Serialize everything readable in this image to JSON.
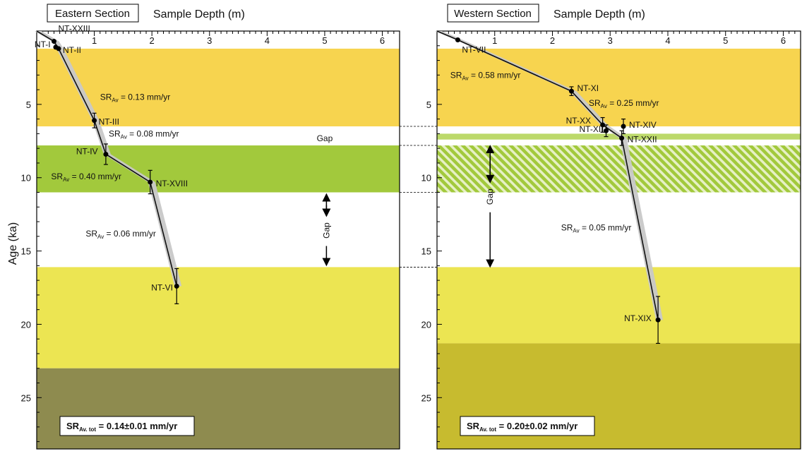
{
  "y_axis_label": "Age (ka)",
  "gap_link_style": "dashed",
  "chart_data": [
    {
      "type": "line",
      "section_title": "Eastern Section",
      "x_axis_label": "Sample Depth (m)",
      "x_axis_position": "top",
      "xlim": [
        0,
        6.3
      ],
      "ylim": [
        0,
        28.5
      ],
      "y_inverted": true,
      "x_ticks": [
        "1",
        "2",
        "3",
        "4",
        "5",
        "6"
      ],
      "y_ticks": [
        "5",
        "10",
        "15",
        "20",
        "25"
      ],
      "bands": [
        {
          "from": 1.2,
          "to": 6.5,
          "color": "#f7d44f"
        },
        {
          "from": 7.8,
          "to": 11.0,
          "color": "#a2c93c"
        },
        {
          "from": 16.1,
          "to": 23.0,
          "color": "#ece552"
        },
        {
          "from": 23.0,
          "to": 28.5,
          "color": "#8e8b4f"
        }
      ],
      "samples": [
        {
          "label": "NT-XXIII",
          "depth": 0.3,
          "age": 0.7
        },
        {
          "label": "NT-I",
          "depth": 0.33,
          "age": 1.1
        },
        {
          "label": "NT-II",
          "depth": 0.38,
          "age": 1.2
        },
        {
          "label": "NT-III",
          "depth": 1.0,
          "age": 6.1,
          "err": 0.5
        },
        {
          "label": "NT-IV",
          "depth": 1.2,
          "age": 8.4,
          "err": 0.7
        },
        {
          "label": "NT-XVIII",
          "depth": 1.97,
          "age": 10.3,
          "err": 0.8
        },
        {
          "label": "NT-VI",
          "depth": 2.43,
          "age": 17.4,
          "err": 1.2
        }
      ],
      "curve": [
        [
          0,
          0
        ],
        [
          0.3,
          0.7
        ],
        [
          0.38,
          1.2
        ],
        [
          1.0,
          6.1
        ],
        [
          1.2,
          8.4
        ],
        [
          1.97,
          10.3
        ],
        [
          2.43,
          17.4
        ]
      ],
      "rates": [
        {
          "sub": "Av",
          "text": " = 0.13 mm/yr",
          "at": [
            1.1,
            4.7
          ]
        },
        {
          "sub": "Av",
          "text": " = 0.08 mm/yr",
          "at": [
            1.25,
            7.2
          ]
        },
        {
          "sub": "Av",
          "text": " = 0.40 mm/yr",
          "at": [
            0.25,
            10.1
          ]
        },
        {
          "sub": "Av",
          "text": " = 0.06 mm/yr",
          "at": [
            0.85,
            14.0
          ]
        }
      ],
      "gap_labels": [
        {
          "text": "Gap",
          "at": [
            5.0,
            7.5
          ],
          "vertical": false
        },
        {
          "text": "Gap",
          "at": [
            5.03,
            13.6
          ],
          "vertical": true,
          "arrow": [
            11.2,
            15.9
          ]
        }
      ],
      "total_rate": {
        "main": "SR",
        "sub": "Av. tot",
        "value": " = 0.14±0.01 mm/yr"
      }
    },
    {
      "type": "line",
      "section_title": "Western Section",
      "x_axis_label": "Sample Depth (m)",
      "x_axis_position": "top",
      "xlim": [
        0,
        6.3
      ],
      "ylim": [
        0,
        28.5
      ],
      "y_inverted": true,
      "x_ticks": [
        "1",
        "2",
        "3",
        "4",
        "5",
        "6"
      ],
      "y_ticks": [
        "5",
        "10",
        "15",
        "20",
        "25"
      ],
      "bands": [
        {
          "from": 1.2,
          "to": 6.5,
          "color": "#f7d44f"
        },
        {
          "from": 7.0,
          "to": 7.4,
          "color": "#bcd96a"
        },
        {
          "from": 7.8,
          "to": 11.0,
          "color": "#a2c93c",
          "hatched": true
        },
        {
          "from": 16.1,
          "to": 21.3,
          "color": "#ece552"
        },
        {
          "from": 21.3,
          "to": 28.5,
          "color": "#c7bb2f"
        }
      ],
      "samples": [
        {
          "label": "NT-VII",
          "depth": 0.36,
          "age": 0.6
        },
        {
          "label": "NT-XI",
          "depth": 2.33,
          "age": 4.1,
          "err": 0.3
        },
        {
          "label": "NT-XX",
          "depth": 2.87,
          "age": 6.4,
          "err": 0.5
        },
        {
          "label": "NT-XII",
          "depth": 2.93,
          "age": 6.8,
          "err": 0.4
        },
        {
          "label": "NT-XIV",
          "depth": 3.23,
          "age": 6.5,
          "err": 0.5
        },
        {
          "label": "NT-XXII",
          "depth": 3.2,
          "age": 7.3,
          "err": 0.5
        },
        {
          "label": "NT-XIX",
          "depth": 3.83,
          "age": 19.7,
          "err": 1.6
        }
      ],
      "curve": [
        [
          0,
          0
        ],
        [
          0.36,
          0.6
        ],
        [
          2.33,
          4.1
        ],
        [
          2.87,
          6.4
        ],
        [
          3.2,
          7.3
        ],
        [
          3.83,
          19.7
        ]
      ],
      "rates": [
        {
          "sub": "Av",
          "text": " = 0.58 mm/yr",
          "at": [
            0.23,
            3.2
          ]
        },
        {
          "sub": "Av",
          "text": " = 0.25 mm/yr",
          "at": [
            2.63,
            5.1
          ]
        },
        {
          "sub": "Av",
          "text": " = 0.05 mm/yr",
          "at": [
            2.15,
            13.6
          ]
        }
      ],
      "gap_labels": [
        {
          "text": "Gap",
          "at": [
            0.92,
            11.3
          ],
          "vertical": true,
          "arrow": [
            7.9,
            16.0
          ]
        }
      ],
      "total_rate": {
        "main": "SR",
        "sub": "Av. tot",
        "value": " = 0.20±0.02 mm/yr"
      }
    }
  ]
}
